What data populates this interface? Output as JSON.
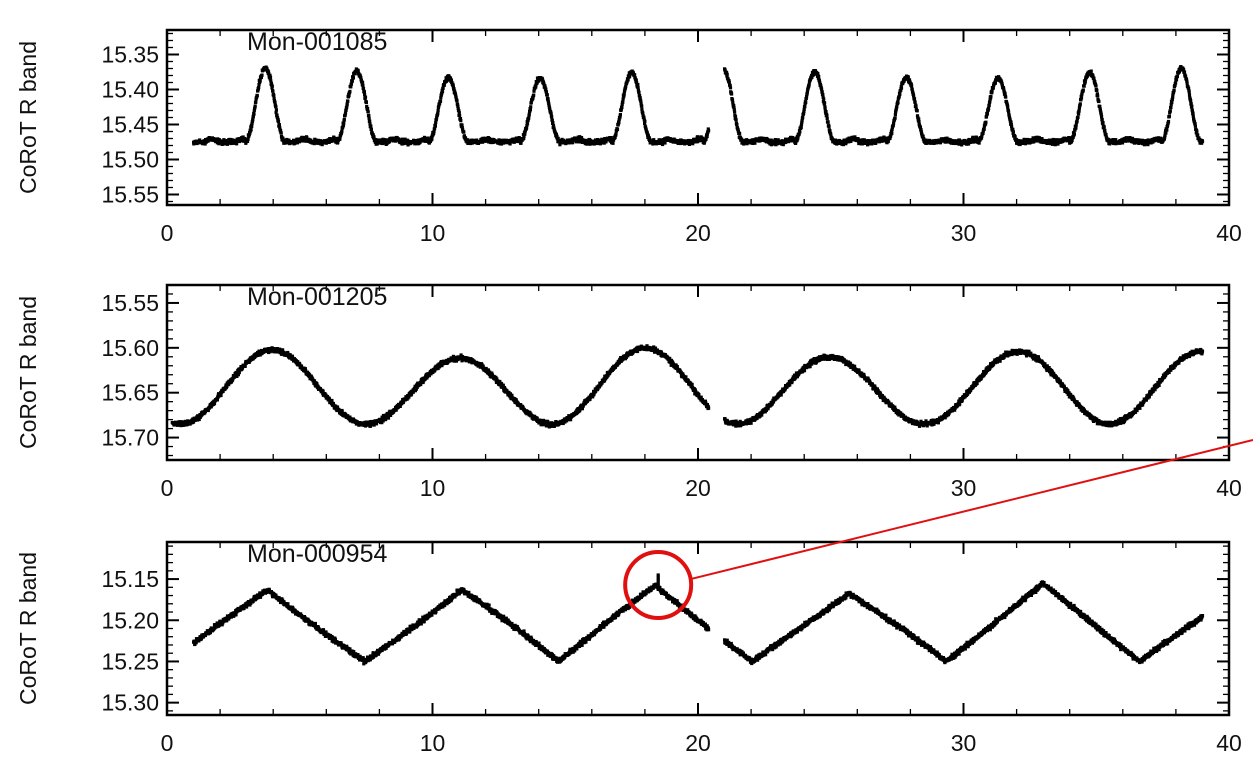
{
  "chart_data": [
    {
      "type": "scatter",
      "annotation": "Mon-001085",
      "ylabel": "CoRoT R band",
      "xlim": [
        0,
        40
      ],
      "ylim": [
        15.565,
        15.315
      ],
      "y_inverted": true,
      "xticks": [
        "0",
        "10",
        "20",
        "30",
        "40"
      ],
      "yticks": [
        "15.35",
        "15.40",
        "15.45",
        "15.50",
        "15.55"
      ],
      "yticks_values": [
        15.35,
        15.4,
        15.45,
        15.5,
        15.55
      ],
      "series": [
        {
          "segments": [
            [
              1.0,
              20.4
            ],
            [
              21.0,
              39.0
            ]
          ],
          "period": 3.45,
          "peak_phase_t": 3.7,
          "max_mag": 15.37,
          "min_mag": 15.475,
          "shape": "sharp-peaked"
        }
      ]
    },
    {
      "type": "scatter",
      "annotation": "Mon-001205",
      "ylabel": "CoRoT R band",
      "xlim": [
        0,
        40
      ],
      "ylim": [
        15.725,
        15.53
      ],
      "y_inverted": true,
      "xticks": [
        "0",
        "10",
        "20",
        "30",
        "40"
      ],
      "yticks": [
        "15.55",
        "15.60",
        "15.65",
        "15.70"
      ],
      "yticks_values": [
        15.55,
        15.6,
        15.65,
        15.7
      ],
      "series": [
        {
          "segments": [
            [
              0.2,
              20.4
            ],
            [
              21.0,
              39.0
            ]
          ],
          "period": 7.0,
          "peak_phase_t": 4.0,
          "max_mag": 15.6,
          "min_mag": 15.685,
          "shape": "sinusoidal"
        }
      ]
    },
    {
      "type": "scatter",
      "annotation": "Mon-000954",
      "ylabel": "CoRoT R band",
      "xlim": [
        0,
        40
      ],
      "ylim": [
        15.315,
        15.105
      ],
      "y_inverted": true,
      "xticks": [
        "0",
        "10",
        "20",
        "30",
        "40"
      ],
      "yticks": [
        "15.15",
        "15.20",
        "15.25",
        "15.30"
      ],
      "yticks_values": [
        15.15,
        15.2,
        15.25,
        15.3
      ],
      "series": [
        {
          "segments": [
            [
              1.0,
              20.4
            ],
            [
              21.0,
              39.0
            ]
          ],
          "period": 7.3,
          "peak_phase_t": 3.8,
          "max_mag": 15.155,
          "min_mag": 15.25,
          "shape": "triangular"
        }
      ],
      "highlight": {
        "t": 18.5,
        "mag": 15.145
      }
    }
  ],
  "annotation_colors": {
    "highlight": "#e01010"
  }
}
